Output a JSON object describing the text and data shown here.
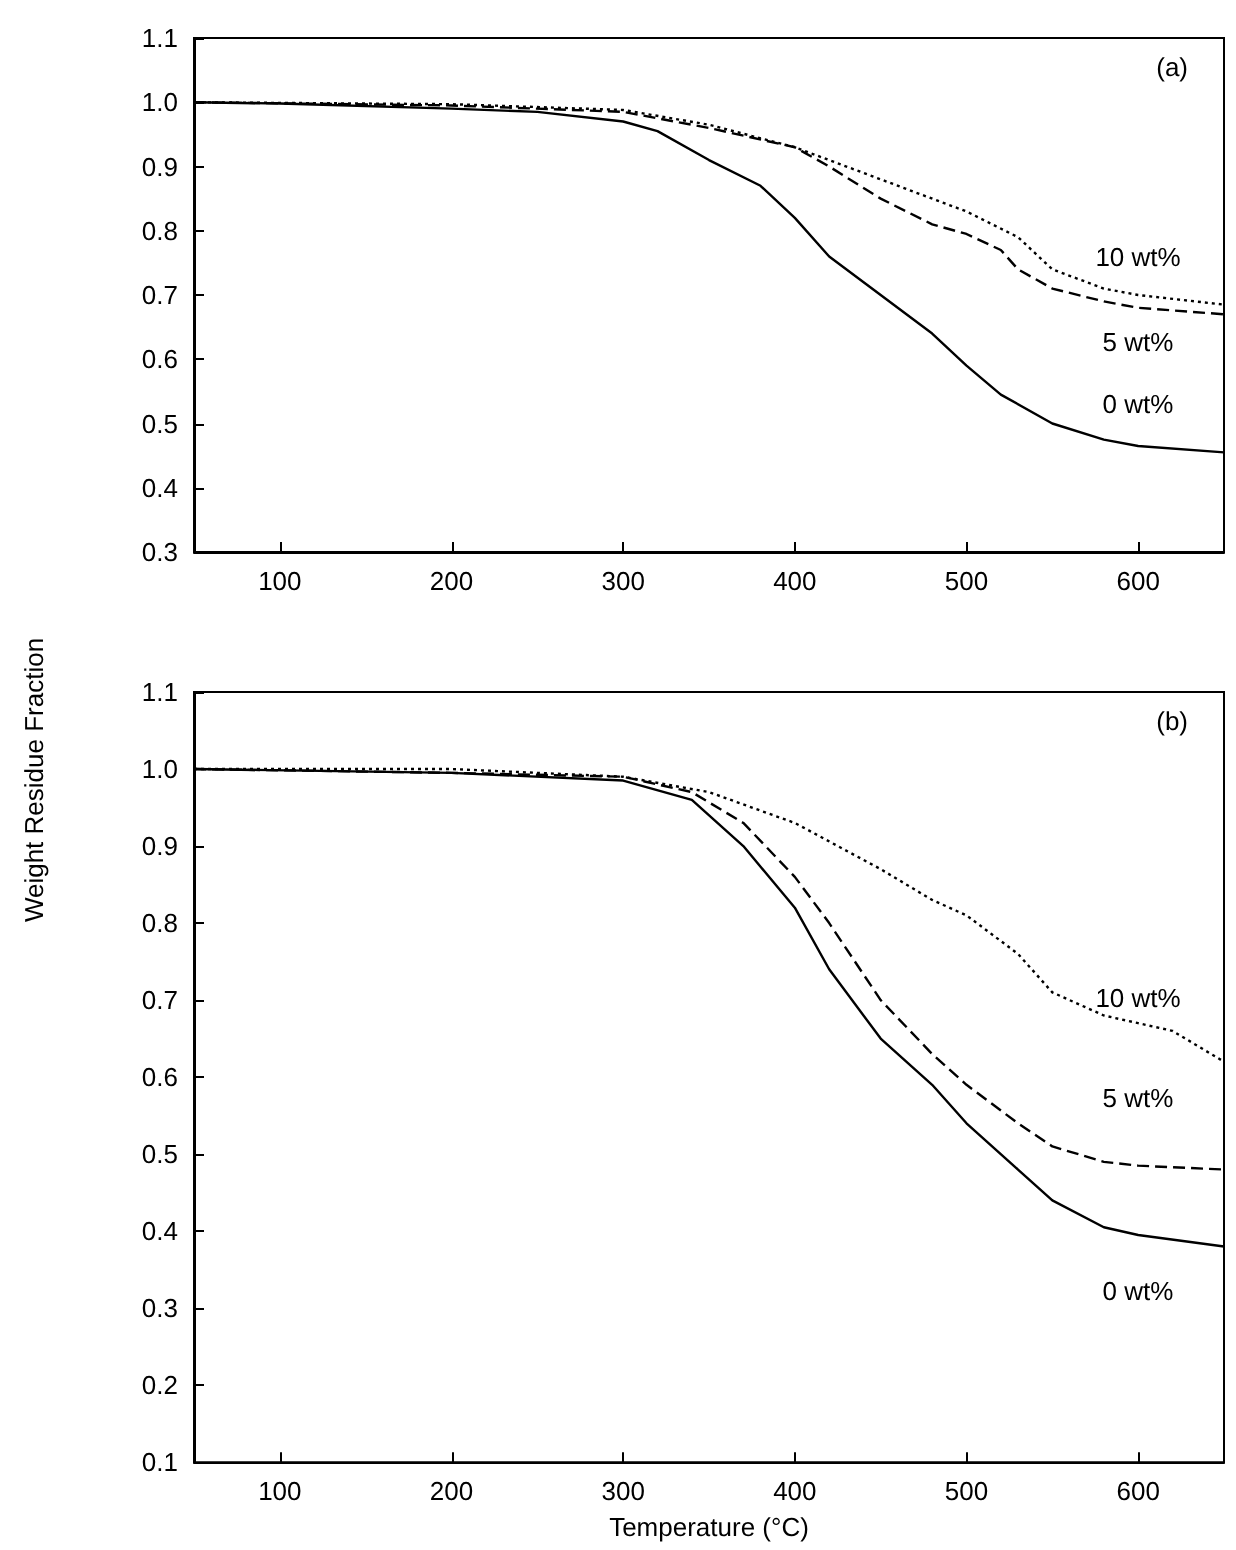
{
  "chart_data": [
    {
      "type": "line",
      "annotations": [
        "(a)"
      ],
      "ylabel": "Weight Residue Fraction",
      "xlim": [
        50,
        650
      ],
      "xticks": [
        100,
        200,
        300,
        400,
        500,
        600
      ],
      "ylim": [
        0.3,
        1.1
      ],
      "yticks": [
        0.3,
        0.4,
        0.5,
        0.6,
        0.7,
        0.8,
        0.9,
        {
          "value": 1,
          "label": "1.0"
        },
        1.1
      ],
      "grid": false,
      "legend": false,
      "marker": "none",
      "series": [
        {
          "name": "10 wt%",
          "color": "#000000",
          "line_style": "dotted",
          "x": [
            50,
            200,
            300,
            350,
            400,
            450,
            500,
            530,
            550,
            580,
            600,
            650
          ],
          "values": [
            1.0,
            0.997,
            0.988,
            0.965,
            0.93,
            0.88,
            0.83,
            0.79,
            0.74,
            0.71,
            0.7,
            0.685
          ]
        },
        {
          "name": "5 wt%",
          "color": "#000000",
          "line_style": "dashed",
          "x": [
            50,
            200,
            300,
            350,
            400,
            420,
            450,
            480,
            500,
            520,
            530,
            550,
            580,
            600,
            650
          ],
          "values": [
            1.0,
            0.995,
            0.985,
            0.96,
            0.93,
            0.9,
            0.85,
            0.81,
            0.795,
            0.77,
            0.74,
            0.71,
            0.69,
            0.68,
            0.67
          ]
        },
        {
          "name": "0 wt%",
          "color": "#000000",
          "line_style": "solid",
          "x": [
            50,
            100,
            200,
            250,
            300,
            320,
            350,
            380,
            400,
            420,
            450,
            480,
            500,
            520,
            550,
            580,
            600,
            650
          ],
          "values": [
            1.0,
            0.998,
            0.99,
            0.985,
            0.97,
            0.955,
            0.91,
            0.87,
            0.82,
            0.76,
            0.7,
            0.64,
            0.59,
            0.545,
            0.5,
            0.475,
            0.465,
            0.455
          ]
        }
      ]
    },
    {
      "type": "line",
      "annotations": [
        "(b)"
      ],
      "xlabel": "Temperature (°C)",
      "xlim": [
        50,
        650
      ],
      "xticks": [
        100,
        200,
        300,
        400,
        500,
        600
      ],
      "ylim": [
        0.1,
        1.1
      ],
      "yticks": [
        0.1,
        0.2,
        0.3,
        0.4,
        0.5,
        0.6,
        0.7,
        0.8,
        0.9,
        {
          "value": 1,
          "label": "1.0"
        },
        1.1
      ],
      "grid": false,
      "legend": false,
      "marker": "none",
      "series": [
        {
          "name": "10 wt%",
          "color": "#000000",
          "line_style": "dotted",
          "x": [
            50,
            200,
            300,
            350,
            400,
            450,
            480,
            500,
            530,
            550,
            580,
            600,
            620,
            650
          ],
          "values": [
            1.0,
            1.0,
            0.99,
            0.97,
            0.93,
            0.87,
            0.83,
            0.81,
            0.76,
            0.71,
            0.68,
            0.67,
            0.66,
            0.62
          ]
        },
        {
          "name": "5 wt%",
          "color": "#000000",
          "line_style": "dashed",
          "x": [
            50,
            200,
            300,
            340,
            370,
            400,
            420,
            450,
            480,
            500,
            530,
            550,
            580,
            600,
            650
          ],
          "values": [
            1.0,
            0.995,
            0.99,
            0.97,
            0.93,
            0.86,
            0.8,
            0.7,
            0.63,
            0.59,
            0.54,
            0.51,
            0.49,
            0.485,
            0.48
          ]
        },
        {
          "name": "0 wt%",
          "color": "#000000",
          "line_style": "solid",
          "x": [
            50,
            200,
            300,
            340,
            370,
            400,
            420,
            450,
            480,
            500,
            530,
            550,
            580,
            600,
            650
          ],
          "values": [
            1.0,
            0.995,
            0.985,
            0.96,
            0.9,
            0.82,
            0.74,
            0.65,
            0.59,
            0.54,
            0.48,
            0.44,
            0.405,
            0.395,
            0.38
          ]
        }
      ]
    }
  ]
}
